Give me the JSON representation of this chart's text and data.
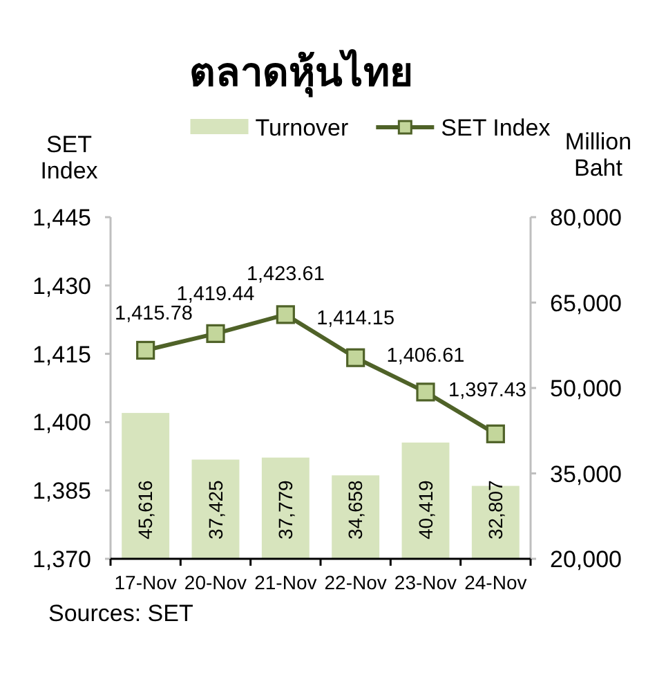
{
  "chart_data": {
    "type": "bar",
    "title": "ตลาดหุ้นไทย",
    "categories": [
      "17-Nov",
      "20-Nov",
      "21-Nov",
      "22-Nov",
      "23-Nov",
      "24-Nov"
    ],
    "series": [
      {
        "name": "Turnover",
        "axis": "y2",
        "color": "#d7e4bd",
        "values": [
          45616,
          37425,
          37779,
          34658,
          40419,
          32807
        ],
        "value_labels": [
          "45,616",
          "37,425",
          "37,779",
          "34,658",
          "40,419",
          "32,807"
        ]
      },
      {
        "name": "SET Index",
        "type": "line",
        "color": "#4f6228",
        "values": [
          1415.78,
          1419.44,
          1423.61,
          1414.15,
          1406.61,
          1397.43
        ],
        "value_labels": [
          "1,415.78",
          "1,419.44",
          "1,423.61",
          "1,414.15",
          "1,406.61",
          "1,397.43"
        ]
      }
    ],
    "ylabel": "SET Index",
    "y2label": "Million Baht",
    "ylim": [
      1370,
      1445
    ],
    "yticks": [
      {
        "value": 1370,
        "label": "1,370"
      },
      {
        "value": 1385,
        "label": "1,385"
      },
      {
        "value": 1400,
        "label": "1,400"
      },
      {
        "value": 1415,
        "label": "1,415"
      },
      {
        "value": 1430,
        "label": "1,430"
      },
      {
        "value": 1445,
        "label": "1,445"
      }
    ],
    "y2lim": [
      20000,
      80000
    ],
    "y2ticks": [
      {
        "value": 20000,
        "label": "20,000"
      },
      {
        "value": 35000,
        "label": "35,000"
      },
      {
        "value": 50000,
        "label": "50,000"
      },
      {
        "value": 65000,
        "label": "65,000"
      },
      {
        "value": 80000,
        "label": "80,000"
      }
    ],
    "marker": "square",
    "legend": "top",
    "grid": false,
    "annotations": [
      "Sources: SET"
    ]
  }
}
